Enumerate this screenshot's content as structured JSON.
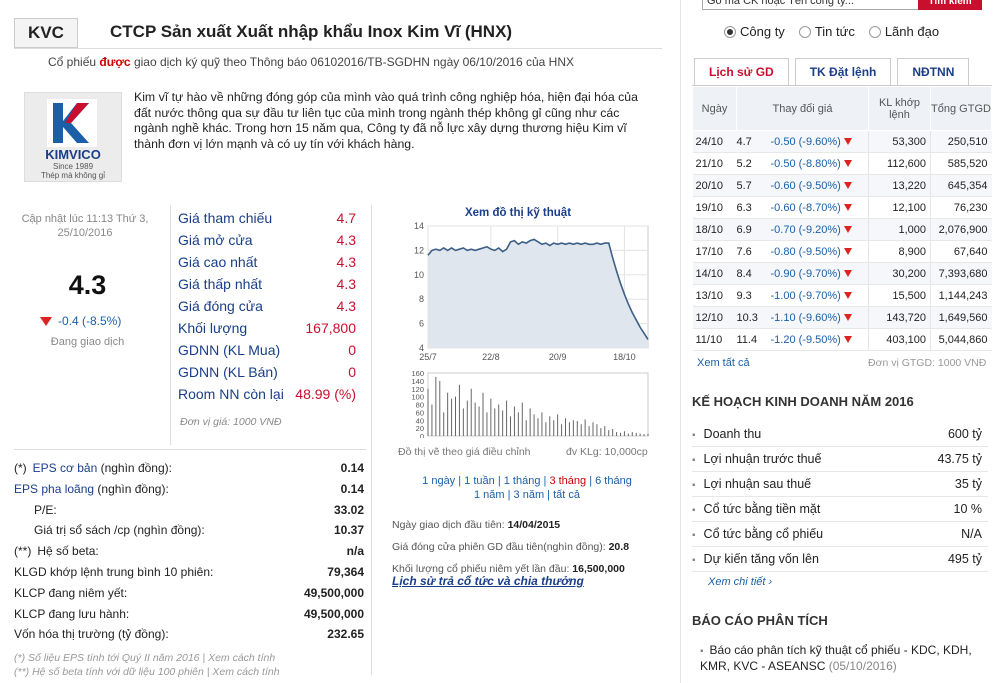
{
  "header": {
    "ticker": "KVC",
    "company": "CTCP Sản xuất Xuất nhập khẩu Inox Kim Vĩ (HNX)",
    "notice_pre": "Cổ phiếu ",
    "notice_bold": "được",
    "notice_post": " giao dịch ký quỹ theo Thông báo 06102016/TB-SGDHN ngày 06/10/2016 của HNX"
  },
  "logo": {
    "brand": "KIMVICO",
    "since": "Since 1989",
    "slogan": "Thép mà không gỉ"
  },
  "intro": "Kim vĩ tự hào về những đóng góp của mình vào quá trình công nghiệp hóa, hiện đại hóa của đất nước thông qua sự đầu tư liên tục của mình trong ngành thép không gỉ cũng như các ngành nghề khác. Trong hơn 15 năm qua, Công ty đã nỗ lực xây dựng thương hiệu Kim vĩ thành đơn vị lớn mạnh và có uy tín với khách hàng.",
  "quote": {
    "updated": "Cập nhật lúc 11:13 Thứ 3, 25/10/2016",
    "price": "4.3",
    "change": "-0.4 (-8.5%)",
    "status": "Đang giao dịch"
  },
  "prices": [
    {
      "label": "Giá tham chiếu",
      "value": "4.7"
    },
    {
      "label": "Giá mở cửa",
      "value": "4.3"
    },
    {
      "label": "Giá cao nhất",
      "value": "4.3"
    },
    {
      "label": "Giá thấp nhất",
      "value": "4.3"
    },
    {
      "label": "Giá đóng cửa",
      "value": "4.3"
    },
    {
      "label": "Khối lượng",
      "value": "167,800"
    },
    {
      "label": "GDNN (KL Mua)",
      "value": "0"
    },
    {
      "label": "GDNN (KL Bán)",
      "value": "0"
    },
    {
      "label": "Room NN còn lại",
      "value": "48.99 (%)"
    }
  ],
  "unit_price": "Đơn vị giá: 1000 VNĐ",
  "fin": [
    {
      "pre": "(*)",
      "label": "EPS cơ bản",
      "suffix": " (nghìn đồng):",
      "value": "0.14"
    },
    {
      "pre": "",
      "label": "EPS pha loãng",
      "suffix": " (nghìn đồng):",
      "value": "0.14"
    },
    {
      "pre": "",
      "label": "",
      "suffix": "P/E:",
      "value": "33.02"
    },
    {
      "pre": "",
      "label": "",
      "suffix": "Giá trị sổ sách /cp (nghìn đồng):",
      "value": "10.37"
    },
    {
      "pre": "(**)",
      "label": "",
      "suffix": "Hệ số beta:",
      "value": "n/a"
    },
    {
      "pre": "",
      "label": "",
      "suffix": "KLGD khớp lệnh trung bình 10 phiên:",
      "value": "79,364"
    },
    {
      "pre": "",
      "label": "",
      "suffix": "KLCP đang niêm yết:",
      "value": "49,500,000"
    },
    {
      "pre": "",
      "label": "",
      "suffix": "KLCP đang lưu hành:",
      "value": "49,500,000"
    },
    {
      "pre": "",
      "label": "",
      "suffix": "Vốn hóa thị trường (tỷ đồng):",
      "value": "232.65"
    }
  ],
  "fin_notes": [
    "(*) Số liệu EPS tính tới Quý II năm 2016 | Xem cách tính",
    "(**) Hệ số beta tính với dữ liệu 100 phiên | Xem cách tính"
  ],
  "chart_title": "Xem đồ thị kỹ thuật",
  "chart_data": {
    "type": "line",
    "x_ticks": [
      "25/7",
      "22/8",
      "20/9",
      "18/10"
    ],
    "price_ylim": [
      4,
      14
    ],
    "price_yticks": [
      4,
      6,
      8,
      10,
      12,
      14
    ],
    "price": [
      11.6,
      12.0,
      12.1,
      12.0,
      12.2,
      12.0,
      12.2,
      12.0,
      12.1,
      12.2,
      12.0,
      12.1,
      12.0,
      12.1,
      12.2,
      12.3,
      12.1,
      12.0,
      12.2,
      11.9,
      12.1,
      12.7,
      12.8,
      12.5,
      12.7,
      12.6,
      12.8,
      12.9,
      12.7,
      12.5,
      12.6,
      12.4,
      12.6,
      12.5,
      12.6,
      12.5,
      12.6,
      12.5,
      12.6,
      12.5,
      12.6,
      12.5,
      12.5,
      12.6,
      12.5,
      12.6,
      12.6,
      11.4,
      10.3,
      9.3,
      8.4,
      7.6,
      6.9,
      6.3,
      5.7,
      5.2,
      4.7
    ],
    "vol_ylim": [
      0,
      160
    ],
    "vol_yticks": [
      0,
      20,
      40,
      60,
      80,
      100,
      120,
      140,
      160
    ],
    "volume": [
      120,
      80,
      150,
      140,
      60,
      110,
      95,
      100,
      130,
      70,
      90,
      120,
      85,
      75,
      110,
      60,
      95,
      70,
      80,
      65,
      90,
      50,
      75,
      60,
      85,
      40,
      70,
      55,
      45,
      60,
      35,
      50,
      40,
      55,
      30,
      45,
      35,
      40,
      38,
      30,
      42,
      25,
      35,
      30,
      20,
      25,
      15,
      18,
      10,
      8,
      12,
      6,
      10,
      8,
      6,
      5,
      6
    ],
    "note_left": "Đồ thị vẽ theo giá điều chỉnh",
    "note_right": "đv KLg: 10,000cp"
  },
  "periods": [
    "1 ngày",
    "1 tuần",
    "1 tháng",
    "3 tháng",
    "6 tháng",
    "1 năm",
    "3 năm",
    "tất cả"
  ],
  "first": [
    {
      "label": "Ngày giao dịch đầu tiên: ",
      "value": "14/04/2015"
    },
    {
      "label": "Giá đóng cửa phiên GD đầu tiên(nghìn đồng): ",
      "value": "20.8"
    },
    {
      "label": "Khối lượng cổ phiếu niêm yết lần đầu: ",
      "value": "16,500,000"
    }
  ],
  "dividend_link": "Lịch sử trả cổ tức và chia thưởng",
  "search": {
    "placeholder": "Gõ mã CK hoặc Tên công ty...",
    "button": "Tìm kiếm"
  },
  "radios": [
    {
      "label": "Công ty",
      "on": true
    },
    {
      "label": "Tin tức",
      "on": false
    },
    {
      "label": "Lãnh đạo",
      "on": false
    }
  ],
  "tabs": [
    "Lịch sử GD",
    "TK Đặt lệnh",
    "NĐTNN"
  ],
  "history": {
    "headers": [
      "Ngày",
      "Thay đổi giá",
      "KL khớp lệnh",
      "Tổng GTGD"
    ],
    "rows": [
      [
        "24/10",
        "4.7",
        "-0.50 (-9.60%)",
        "53,300",
        "250,510"
      ],
      [
        "21/10",
        "5.2",
        "-0.50 (-8.80%)",
        "112,600",
        "585,520"
      ],
      [
        "20/10",
        "5.7",
        "-0.60 (-9.50%)",
        "13,220",
        "645,354"
      ],
      [
        "19/10",
        "6.3",
        "-0.60 (-8.70%)",
        "12,100",
        "76,230"
      ],
      [
        "18/10",
        "6.9",
        "-0.70 (-9.20%)",
        "1,000",
        "2,076,900"
      ],
      [
        "17/10",
        "7.6",
        "-0.80 (-9.50%)",
        "8,900",
        "67,640"
      ],
      [
        "14/10",
        "8.4",
        "-0.90 (-9.70%)",
        "30,200",
        "7,393,680"
      ],
      [
        "13/10",
        "9.3",
        "-1.00 (-9.70%)",
        "15,500",
        "1,144,243"
      ],
      [
        "12/10",
        "10.3",
        "-1.10 (-9.60%)",
        "143,720",
        "1,649,560"
      ],
      [
        "11/10",
        "11.4",
        "-1.20 (-9.50%)",
        "403,100",
        "5,044,860"
      ]
    ]
  },
  "see_all": "Xem tất cả",
  "unit_gtgd": "Đơn vị GTGD: 1000 VNĐ",
  "plan_title": "KẾ HOẠCH KINH DOANH NĂM 2016",
  "plan": [
    {
      "label": "Doanh thu",
      "value": "600 tỷ"
    },
    {
      "label": "Lợi nhuận trước thuế",
      "value": "43.75 tỷ"
    },
    {
      "label": "Lợi nhuận sau thuế",
      "value": "35 tỷ"
    },
    {
      "label": "Cổ tức bằng tiền mặt",
      "value": "10 %"
    },
    {
      "label": "Cổ tức bằng cổ phiếu",
      "value": "N/A"
    },
    {
      "label": "Dự kiến tăng vốn lên",
      "value": "495 tỷ"
    }
  ],
  "more": "Xem chi tiết",
  "report_title": "BÁO CÁO PHÂN TÍCH",
  "report": {
    "text": "Báo cáo phân tích kỹ thuật cổ phiếu - KDC, KDH, KMR, KVC - ASEANSC ",
    "date": "(05/10/2016)"
  }
}
